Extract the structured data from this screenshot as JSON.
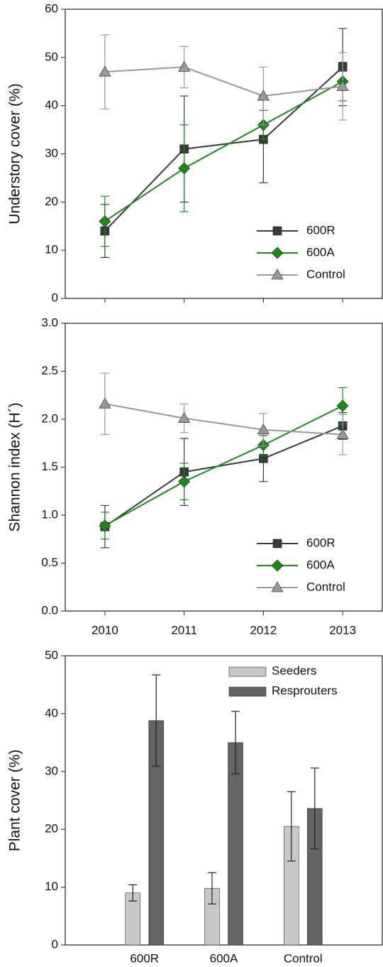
{
  "chart_data": [
    {
      "type": "line",
      "ylabel": "Understory cover (%)",
      "x": [
        2010,
        2011,
        2012,
        2013
      ],
      "xlim": [
        2009.5,
        2013.5
      ],
      "ylim": [
        0,
        60
      ],
      "yticks": [
        0,
        10,
        20,
        30,
        40,
        50,
        60
      ],
      "legend": "lower right",
      "series": [
        {
          "name": "600R",
          "color": "#333f33",
          "marker": "square",
          "values": [
            14,
            31,
            33,
            48
          ],
          "errors": [
            5.5,
            11,
            9,
            8
          ]
        },
        {
          "name": "600A",
          "color": "#1a8a1a",
          "marker": "diamond",
          "values": [
            16,
            27,
            36,
            45
          ],
          "errors": [
            5.2,
            9,
            3,
            4
          ]
        },
        {
          "name": "Control",
          "color": "#999999",
          "marker": "triangle",
          "values": [
            47,
            48,
            42,
            44
          ],
          "errors": [
            7.7,
            4.3,
            6,
            7
          ]
        }
      ]
    },
    {
      "type": "line",
      "ylabel": "Shannon index (H´)",
      "x": [
        2010,
        2011,
        2012,
        2013
      ],
      "xlim": [
        2009.5,
        2013.5
      ],
      "xticks": [
        2010,
        2011,
        2012,
        2013
      ],
      "ylim": [
        0,
        3
      ],
      "yticks": [
        {
          "value": 0,
          "label": "0.0"
        },
        0.5,
        {
          "value": 1,
          "label": "1.0"
        },
        1.5,
        {
          "value": 2,
          "label": "2.0"
        },
        2.5,
        {
          "value": 3,
          "label": "3.0"
        }
      ],
      "legend": "lower right",
      "series": [
        {
          "name": "600R",
          "color": "#333f33",
          "marker": "square",
          "values": [
            0.88,
            1.45,
            1.59,
            1.93
          ],
          "errors": [
            0.22,
            0.35,
            0.24,
            0.14
          ]
        },
        {
          "name": "600A",
          "color": "#1a8a1a",
          "marker": "diamond",
          "values": [
            0.89,
            1.35,
            1.73,
            2.14
          ],
          "errors": [
            0.14,
            0.19,
            0.1,
            0.19
          ]
        },
        {
          "name": "Control",
          "color": "#999999",
          "marker": "triangle",
          "values": [
            2.16,
            2.01,
            1.89,
            1.84
          ],
          "errors": [
            0.32,
            0.15,
            0.17,
            0.21
          ]
        }
      ]
    },
    {
      "type": "bar",
      "ylabel": "Plant cover (%)",
      "categories": [
        "600R",
        "600A",
        "Control"
      ],
      "ylim": [
        0,
        50
      ],
      "yticks": [
        0,
        10,
        20,
        30,
        40,
        50
      ],
      "legend": "upper right",
      "series": [
        {
          "name": "Seeders",
          "color": "#c8c8c8",
          "values": [
            9,
            9.8,
            20.5
          ],
          "errors": [
            1.4,
            2.7,
            6
          ]
        },
        {
          "name": "Resprouters",
          "color": "#646464",
          "values": [
            38.8,
            35,
            23.6
          ],
          "errors": [
            7.9,
            5.4,
            7
          ]
        }
      ]
    }
  ]
}
